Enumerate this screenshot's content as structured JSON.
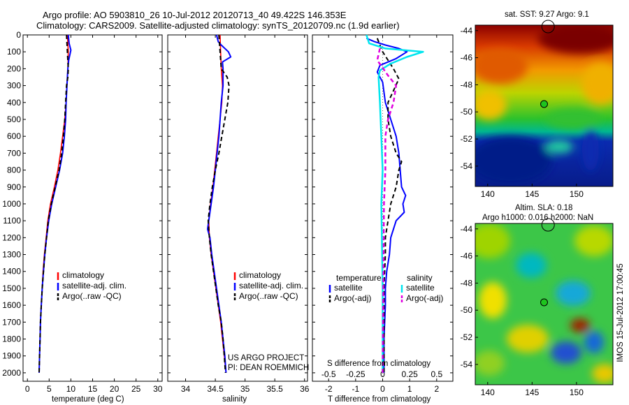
{
  "header": {
    "title": "Argo profile: AO 5903810_26 10-Jul-2012 20120713_40 49.422S 146.353E",
    "subtitle": "Climatology: CARS2009. Satellite-adjusted climatology: synTS_20120709.nc (1.9d earlier)"
  },
  "colors": {
    "climatology": "#ff0000",
    "satellite": "#0000ff",
    "argo": "#000000",
    "sal_satellite": "#00e5ee",
    "sal_argo": "#e000e0"
  },
  "depth_axis": {
    "ylim": [
      0,
      2050
    ],
    "ticks": [
      0,
      100,
      200,
      300,
      400,
      500,
      600,
      700,
      800,
      900,
      1000,
      1100,
      1200,
      1300,
      1400,
      1500,
      1600,
      1700,
      1800,
      1900,
      2000
    ]
  },
  "chart_data": [
    {
      "type": "line",
      "panel": "temperature",
      "xlabel": "temperature (deg C)",
      "xlim": [
        -1,
        31
      ],
      "xticks": [
        0,
        5,
        10,
        15,
        20,
        25,
        30
      ],
      "legend": [
        "climatology",
        "satellite-adj. clim.",
        "Argo(..raw -QC)"
      ],
      "series": [
        {
          "name": "climatology",
          "points": [
            [
              9.2,
              0
            ],
            [
              9.3,
              50
            ],
            [
              9.4,
              100
            ],
            [
              9.3,
              200
            ],
            [
              9.1,
              300
            ],
            [
              8.9,
              400
            ],
            [
              8.6,
              500
            ],
            [
              8.1,
              600
            ],
            [
              7.6,
              700
            ],
            [
              7.0,
              800
            ],
            [
              6.2,
              900
            ],
            [
              5.3,
              1000
            ],
            [
              4.7,
              1100
            ],
            [
              4.3,
              1200
            ],
            [
              3.9,
              1300
            ],
            [
              3.6,
              1400
            ],
            [
              3.4,
              1500
            ],
            [
              3.2,
              1600
            ],
            [
              3.0,
              1700
            ],
            [
              2.9,
              1800
            ],
            [
              2.8,
              1900
            ],
            [
              2.7,
              2000
            ]
          ]
        },
        {
          "name": "satellite-adj. clim.",
          "points": [
            [
              9.4,
              0
            ],
            [
              9.6,
              50
            ],
            [
              10.0,
              90
            ],
            [
              9.5,
              150
            ],
            [
              9.3,
              200
            ],
            [
              9.1,
              300
            ],
            [
              8.9,
              400
            ],
            [
              8.8,
              500
            ],
            [
              8.5,
              600
            ],
            [
              8.1,
              700
            ],
            [
              7.4,
              800
            ],
            [
              6.5,
              900
            ],
            [
              5.6,
              1000
            ],
            [
              4.9,
              1100
            ],
            [
              4.4,
              1200
            ],
            [
              4.0,
              1300
            ],
            [
              3.7,
              1400
            ],
            [
              3.4,
              1500
            ],
            [
              3.2,
              1600
            ],
            [
              3.0,
              1700
            ],
            [
              2.9,
              1800
            ],
            [
              2.8,
              1900
            ],
            [
              2.7,
              2000
            ]
          ]
        },
        {
          "name": "Argo(..raw -QC)",
          "points": [
            [
              9.0,
              0
            ],
            [
              9.1,
              50
            ],
            [
              9.2,
              100
            ],
            [
              9.4,
              200
            ],
            [
              9.3,
              250
            ],
            [
              9.0,
              300
            ],
            [
              8.8,
              400
            ],
            [
              8.6,
              500
            ],
            [
              8.3,
              600
            ],
            [
              7.9,
              700
            ],
            [
              7.3,
              800
            ],
            [
              6.4,
              900
            ],
            [
              5.5,
              1000
            ],
            [
              4.8,
              1100
            ],
            [
              4.4,
              1200
            ],
            [
              4.0,
              1300
            ],
            [
              3.7,
              1400
            ],
            [
              3.4,
              1500
            ],
            [
              3.2,
              1600
            ],
            [
              3.0,
              1700
            ],
            [
              2.9,
              1800
            ],
            [
              2.8,
              1900
            ],
            [
              2.7,
              2000
            ]
          ]
        }
      ]
    },
    {
      "type": "line",
      "panel": "salinity",
      "xlabel": "salinity",
      "xlim": [
        33.7,
        36.05
      ],
      "xticks": [
        34,
        34.5,
        35,
        35.5,
        36
      ],
      "legend": [
        "climatology",
        "satellite-adj. clim.",
        "Argo(..raw -QC)"
      ],
      "series": [
        {
          "name": "climatology",
          "points": [
            [
              34.58,
              0
            ],
            [
              34.59,
              100
            ],
            [
              34.6,
              200
            ],
            [
              34.62,
              300
            ],
            [
              34.61,
              400
            ],
            [
              34.58,
              500
            ],
            [
              34.55,
              600
            ],
            [
              34.52,
              700
            ],
            [
              34.49,
              800
            ],
            [
              34.46,
              900
            ],
            [
              34.42,
              1000
            ],
            [
              34.39,
              1100
            ],
            [
              34.4,
              1200
            ],
            [
              34.43,
              1300
            ],
            [
              34.47,
              1400
            ],
            [
              34.51,
              1500
            ],
            [
              34.55,
              1600
            ],
            [
              34.59,
              1700
            ],
            [
              34.62,
              1800
            ],
            [
              34.65,
              1900
            ],
            [
              34.68,
              2000
            ]
          ]
        },
        {
          "name": "satellite-adj. clim.",
          "points": [
            [
              34.52,
              0
            ],
            [
              34.55,
              40
            ],
            [
              34.6,
              60
            ],
            [
              34.72,
              100
            ],
            [
              34.76,
              130
            ],
            [
              34.62,
              160
            ],
            [
              34.63,
              200
            ],
            [
              34.63,
              300
            ],
            [
              34.6,
              400
            ],
            [
              34.58,
              500
            ],
            [
              34.56,
              600
            ],
            [
              34.53,
              700
            ],
            [
              34.5,
              800
            ],
            [
              34.47,
              900
            ],
            [
              34.43,
              1000
            ],
            [
              34.39,
              1100
            ],
            [
              34.37,
              1150
            ],
            [
              34.41,
              1200
            ],
            [
              34.44,
              1300
            ],
            [
              34.48,
              1400
            ],
            [
              34.52,
              1500
            ],
            [
              34.56,
              1600
            ],
            [
              34.6,
              1700
            ],
            [
              34.63,
              1800
            ],
            [
              34.66,
              1900
            ],
            [
              34.68,
              2000
            ]
          ]
        },
        {
          "name": "Argo(..raw -QC)",
          "points": [
            [
              34.56,
              0
            ],
            [
              34.58,
              100
            ],
            [
              34.6,
              200
            ],
            [
              34.7,
              250
            ],
            [
              34.73,
              300
            ],
            [
              34.71,
              400
            ],
            [
              34.66,
              500
            ],
            [
              34.61,
              600
            ],
            [
              34.56,
              700
            ],
            [
              34.5,
              800
            ],
            [
              34.45,
              900
            ],
            [
              34.41,
              1000
            ],
            [
              34.38,
              1100
            ],
            [
              34.4,
              1200
            ],
            [
              34.43,
              1300
            ],
            [
              34.47,
              1400
            ],
            [
              34.51,
              1500
            ],
            [
              34.55,
              1600
            ],
            [
              34.6,
              1700
            ],
            [
              34.63,
              1800
            ],
            [
              34.65,
              1900
            ],
            [
              34.67,
              2000
            ]
          ]
        }
      ]
    },
    {
      "type": "line",
      "panel": "difference",
      "xlabel": "T difference from climatology",
      "xlabel2": "S difference from climatology",
      "xlim": [
        -2.6,
        2.6
      ],
      "xticks": [
        -2,
        -1,
        0,
        1,
        2
      ],
      "xticks2": [
        -0.5,
        -0.25,
        0,
        0.25,
        0.5
      ],
      "legend_temperature": [
        "temperature",
        "satellite",
        "Argo(-adj)"
      ],
      "legend_salinity": [
        "salinity",
        "satellite",
        "Argo(-adj)"
      ],
      "series": [
        {
          "name": "T satellite",
          "points": [
            [
              -0.6,
              20
            ],
            [
              -0.3,
              40
            ],
            [
              0.1,
              60
            ],
            [
              0.6,
              80
            ],
            [
              0.9,
              100
            ],
            [
              0.5,
              140
            ],
            [
              -0.1,
              180
            ],
            [
              -0.2,
              220
            ],
            [
              0,
              280
            ],
            [
              0.1,
              400
            ],
            [
              0.3,
              500
            ],
            [
              0.5,
              600
            ],
            [
              0.6,
              700
            ],
            [
              0.65,
              800
            ],
            [
              0.7,
              900
            ],
            [
              0.85,
              950
            ],
            [
              0.75,
              1000
            ],
            [
              0.8,
              1050
            ],
            [
              0.5,
              1100
            ],
            [
              0.3,
              1200
            ],
            [
              0.25,
              1300
            ],
            [
              0.15,
              1400
            ],
            [
              0.1,
              1500
            ],
            [
              0.1,
              1600
            ],
            [
              0.05,
              1800
            ],
            [
              0.05,
              2000
            ]
          ]
        },
        {
          "name": "T Argo(-adj)",
          "points": [
            [
              -0.2,
              20
            ],
            [
              0,
              100
            ],
            [
              0.4,
              200
            ],
            [
              0.6,
              260
            ],
            [
              0.4,
              330
            ],
            [
              0.2,
              400
            ],
            [
              0.2,
              500
            ],
            [
              0.3,
              600
            ],
            [
              0.5,
              700
            ],
            [
              0.7,
              750
            ],
            [
              0.6,
              800
            ],
            [
              0.5,
              900
            ],
            [
              0.3,
              1000
            ],
            [
              0.2,
              1100
            ],
            [
              0.1,
              1200
            ],
            [
              0.1,
              1300
            ],
            [
              0.05,
              1500
            ],
            [
              0.05,
              2000
            ]
          ]
        },
        {
          "name": "S satellite",
          "points": [
            [
              -0.6,
              0
            ],
            [
              -0.5,
              50
            ],
            [
              0.1,
              80
            ],
            [
              1.5,
              100
            ],
            [
              0.9,
              130
            ],
            [
              0.3,
              170
            ],
            [
              -0.1,
              210
            ],
            [
              -0.15,
              250
            ],
            [
              -0.1,
              400
            ],
            [
              -0.05,
              600
            ],
            [
              0,
              800
            ],
            [
              -0.05,
              1000
            ],
            [
              0,
              1500
            ],
            [
              0,
              2000
            ]
          ]
        },
        {
          "name": "S Argo(-adj)",
          "points": [
            [
              -0.1,
              80
            ],
            [
              -0.2,
              150
            ],
            [
              0.2,
              240
            ],
            [
              0.5,
              300
            ],
            [
              0.4,
              400
            ],
            [
              0.2,
              500
            ],
            [
              0.1,
              600
            ],
            [
              0.1,
              800
            ],
            [
              0.05,
              1000
            ],
            [
              0,
              2000
            ]
          ]
        }
      ]
    },
    {
      "type": "heatmap",
      "panel": "sat_sst",
      "title": "sat. SST: 9.27 Argo: 9.1",
      "xticks": [
        140,
        145,
        150
      ],
      "yticks": [
        -44,
        -46,
        -48,
        -50,
        -52,
        -54
      ],
      "xlim": [
        138.6,
        154.1
      ],
      "ylim": [
        -55.5,
        -43.6
      ],
      "marker": [
        146.35,
        -49.42
      ]
    },
    {
      "type": "heatmap",
      "panel": "altim_sla",
      "title": "Altim. SLA: 0.18",
      "subtitle": "Argo h1000: 0.016 h2000: NaN",
      "xticks": [
        140,
        145,
        150
      ],
      "yticks": [
        -44,
        -46,
        -48,
        -50,
        -52,
        -54
      ],
      "xlim": [
        138.6,
        154.1
      ],
      "ylim": [
        -55.5,
        -43.6
      ],
      "marker": [
        146.35,
        -49.42
      ]
    }
  ],
  "notes": {
    "project": "US ARGO PROJECT",
    "pi": "PI: DEAN ROEMMICH",
    "stamp": "IMOS 15-Jul-2012 17:00:45"
  }
}
